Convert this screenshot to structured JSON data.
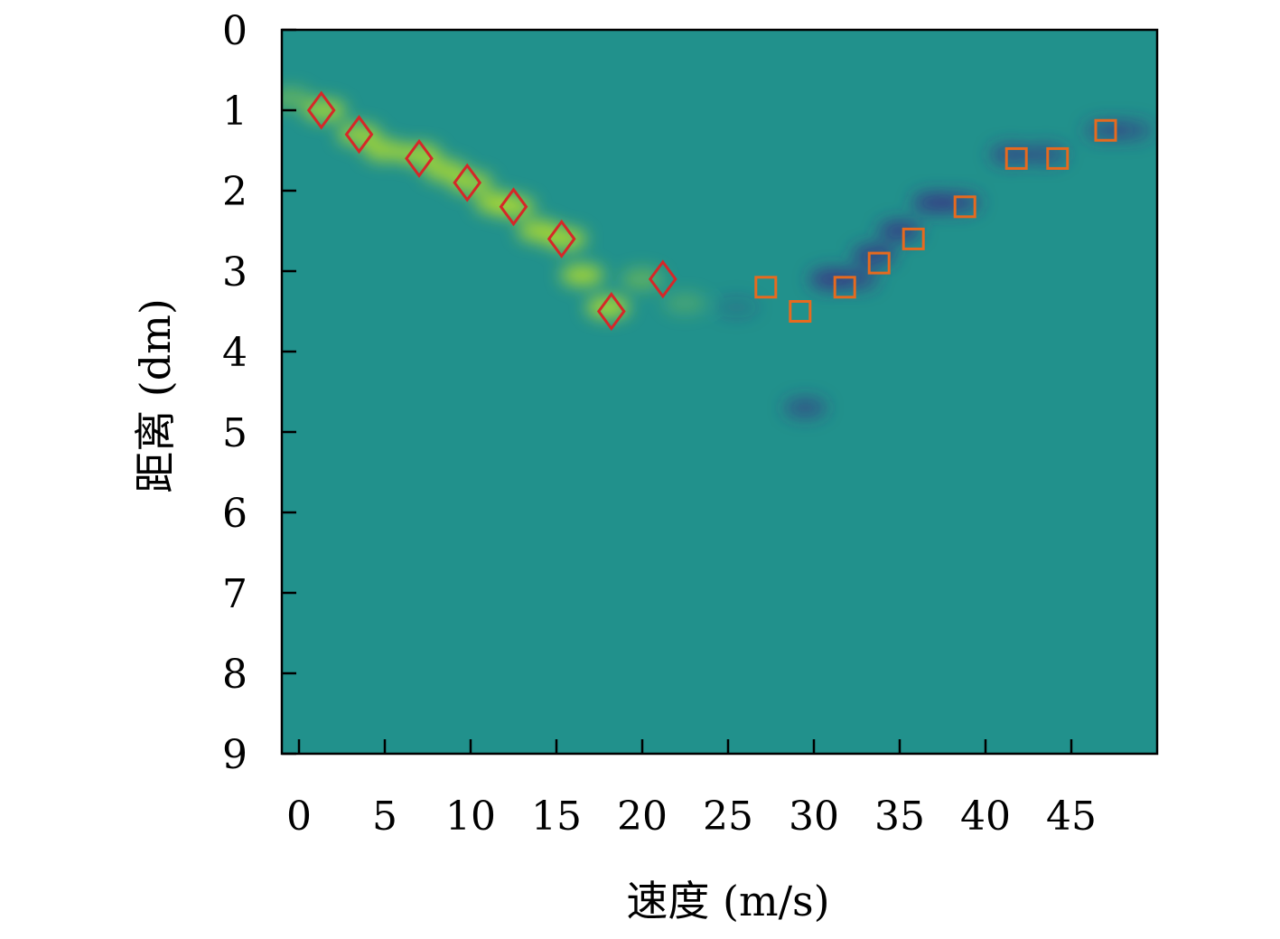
{
  "chart_data": {
    "type": "heatmap",
    "title": "",
    "xlabel": "速度 (m/s)",
    "ylabel": "距离 (dm)",
    "xlim": [
      -1,
      50
    ],
    "ylim": [
      9,
      0
    ],
    "x_ticks": [
      0,
      5,
      10,
      15,
      20,
      25,
      30,
      35,
      40,
      45
    ],
    "y_ticks": [
      0,
      1,
      2,
      3,
      4,
      5,
      6,
      7,
      8,
      9
    ],
    "grid": false,
    "colors": {
      "background": "#21918c",
      "positive_blob": "#b5de2b",
      "negative_blob": "#3b2f84",
      "diamond_marker": "#d62728",
      "square_marker": "#e66a1f"
    },
    "positive_track": [
      {
        "x": -0.5,
        "y": 0.85,
        "intensity": 0.4
      },
      {
        "x": 1.5,
        "y": 1.0,
        "intensity": 0.8
      },
      {
        "x": 3.5,
        "y": 1.3,
        "intensity": 0.8
      },
      {
        "x": 5.0,
        "y": 1.5,
        "intensity": 0.8
      },
      {
        "x": 7.0,
        "y": 1.55,
        "intensity": 0.85
      },
      {
        "x": 8.5,
        "y": 1.75,
        "intensity": 0.8
      },
      {
        "x": 10.0,
        "y": 1.9,
        "intensity": 0.8
      },
      {
        "x": 11.5,
        "y": 2.15,
        "intensity": 0.85
      },
      {
        "x": 12.5,
        "y": 2.2,
        "intensity": 0.8
      },
      {
        "x": 14.0,
        "y": 2.5,
        "intensity": 0.85
      },
      {
        "x": 15.5,
        "y": 2.6,
        "intensity": 0.85
      },
      {
        "x": 16.5,
        "y": 3.05,
        "intensity": 0.85
      },
      {
        "x": 18.0,
        "y": 3.45,
        "intensity": 0.9
      },
      {
        "x": 20.0,
        "y": 3.1,
        "intensity": 0.4
      },
      {
        "x": 22.5,
        "y": 3.4,
        "intensity": 0.25
      }
    ],
    "negative_track": [
      {
        "x": 25.5,
        "y": 3.45,
        "intensity": 0.2
      },
      {
        "x": 29.5,
        "y": 4.7,
        "intensity": 0.55
      },
      {
        "x": 31.0,
        "y": 3.1,
        "intensity": 0.8
      },
      {
        "x": 32.5,
        "y": 3.1,
        "intensity": 0.6
      },
      {
        "x": 33.5,
        "y": 2.8,
        "intensity": 0.75
      },
      {
        "x": 35.0,
        "y": 2.5,
        "intensity": 0.75
      },
      {
        "x": 37.0,
        "y": 2.15,
        "intensity": 0.75
      },
      {
        "x": 38.5,
        "y": 2.15,
        "intensity": 0.6
      },
      {
        "x": 41.5,
        "y": 1.55,
        "intensity": 0.6
      },
      {
        "x": 43.5,
        "y": 1.55,
        "intensity": 0.55
      },
      {
        "x": 47.0,
        "y": 1.25,
        "intensity": 0.5
      },
      {
        "x": 48.5,
        "y": 1.25,
        "intensity": 0.45
      }
    ],
    "series": [
      {
        "marker": "diamond",
        "color": "#d62728",
        "points": [
          {
            "x": 1.3,
            "y": 1.0
          },
          {
            "x": 3.5,
            "y": 1.3
          },
          {
            "x": 7.0,
            "y": 1.6
          },
          {
            "x": 9.8,
            "y": 1.9
          },
          {
            "x": 12.5,
            "y": 2.2
          },
          {
            "x": 15.3,
            "y": 2.6
          },
          {
            "x": 18.2,
            "y": 3.5
          },
          {
            "x": 21.2,
            "y": 3.1
          }
        ]
      },
      {
        "marker": "square",
        "color": "#e66a1f",
        "points": [
          {
            "x": 27.2,
            "y": 3.2
          },
          {
            "x": 29.2,
            "y": 3.5
          },
          {
            "x": 31.8,
            "y": 3.2
          },
          {
            "x": 33.8,
            "y": 2.9
          },
          {
            "x": 35.8,
            "y": 2.6
          },
          {
            "x": 38.8,
            "y": 2.2
          },
          {
            "x": 41.8,
            "y": 1.6
          },
          {
            "x": 44.2,
            "y": 1.6
          },
          {
            "x": 47.0,
            "y": 1.25
          }
        ]
      }
    ]
  }
}
